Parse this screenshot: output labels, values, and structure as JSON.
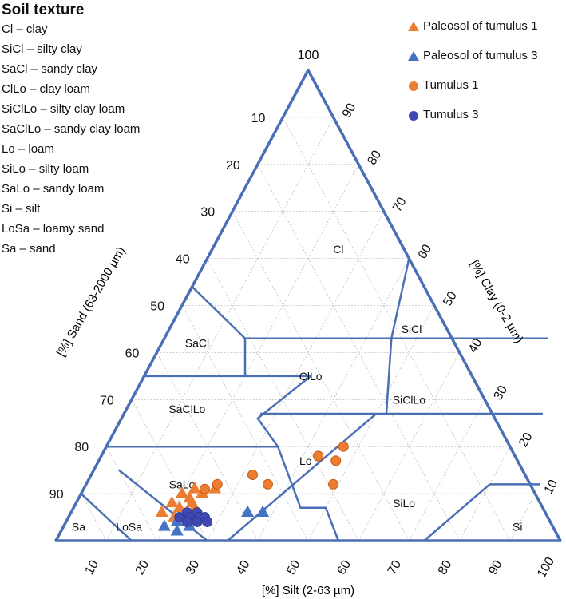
{
  "chart_data": {
    "type": "scatter",
    "subtype": "ternary-soil-texture",
    "title": "Soil texture",
    "axes": {
      "sand": {
        "label": "[%] Sand (63-2000 µm)",
        "ticks": [
          10,
          20,
          30,
          40,
          50,
          60,
          70,
          80,
          90
        ],
        "side": "left",
        "direction": "increasing-downward"
      },
      "clay": {
        "label": "[%] Clay (0-2 µm)",
        "ticks": [
          10,
          20,
          30,
          40,
          50,
          60,
          70,
          80,
          90,
          100
        ],
        "side": "right",
        "direction": "increasing-upward"
      },
      "silt": {
        "label": "[%] Silt (2-63 µm)",
        "ticks": [
          10,
          20,
          30,
          40,
          50,
          60,
          70,
          80,
          90,
          100
        ],
        "side": "bottom",
        "direction": "increasing-rightward"
      }
    },
    "apex_label": "100",
    "grid": true,
    "texture_classes": [
      {
        "code": "Cl",
        "name": "clay"
      },
      {
        "code": "SiCl",
        "name": "silty clay"
      },
      {
        "code": "SaCl",
        "name": "sandy clay"
      },
      {
        "code": "ClLo",
        "name": "clay loam"
      },
      {
        "code": "SiClLo",
        "name": "silty clay loam"
      },
      {
        "code": "SaClLo",
        "name": "sandy clay loam"
      },
      {
        "code": "Lo",
        "name": "loam"
      },
      {
        "code": "SiLo",
        "name": "silty loam"
      },
      {
        "code": "SaLo",
        "name": "sandy loam"
      },
      {
        "code": "Si",
        "name": "silt"
      },
      {
        "code": "LoSa",
        "name": "loamy sand"
      },
      {
        "code": "Sa",
        "name": "sand"
      }
    ],
    "region_labels": [
      {
        "text": "Cl",
        "silt": 25,
        "clay": 62
      },
      {
        "text": "SiCl",
        "silt": 48,
        "clay": 45
      },
      {
        "text": "SaCl",
        "silt": 7,
        "clay": 42
      },
      {
        "text": "ClLo",
        "silt": 33,
        "clay": 35
      },
      {
        "text": "SiClLo",
        "silt": 55,
        "clay": 30
      },
      {
        "text": "SaClLo",
        "silt": 12,
        "clay": 28
      },
      {
        "text": "Lo",
        "silt": 41,
        "clay": 17
      },
      {
        "text": "SiLo",
        "silt": 65,
        "clay": 8
      },
      {
        "text": "SaLo",
        "silt": 19,
        "clay": 12
      },
      {
        "text": "Si",
        "silt": 90,
        "clay": 3
      },
      {
        "text": "LoSa",
        "silt": 13,
        "clay": 3
      },
      {
        "text": "Sa",
        "silt": 3,
        "clay": 3
      }
    ],
    "series": [
      {
        "name": "Paleosol of tumulus 1",
        "marker": "triangle",
        "color": "#ED7D31",
        "points": [
          {
            "silt": 18,
            "clay": 6
          },
          {
            "silt": 19,
            "clay": 8
          },
          {
            "silt": 20,
            "clay": 10
          },
          {
            "silt": 21,
            "clay": 7
          },
          {
            "silt": 22,
            "clay": 9
          },
          {
            "silt": 23,
            "clay": 8
          },
          {
            "silt": 24,
            "clay": 10
          },
          {
            "silt": 26,
            "clay": 11
          },
          {
            "silt": 24,
            "clay": 7
          },
          {
            "silt": 22,
            "clay": 11
          },
          {
            "silt": 21,
            "clay": 5
          }
        ]
      },
      {
        "name": "Paleosol of tumulus 3",
        "marker": "triangle",
        "color": "#4472C4",
        "points": [
          {
            "silt": 20,
            "clay": 3
          },
          {
            "silt": 22,
            "clay": 4
          },
          {
            "silt": 23,
            "clay": 2
          },
          {
            "silt": 24,
            "clay": 5
          },
          {
            "silt": 25,
            "clay": 3
          },
          {
            "silt": 35,
            "clay": 6
          },
          {
            "silt": 38,
            "clay": 6
          }
        ]
      },
      {
        "name": "Tumulus 1",
        "marker": "circle",
        "color": "#ED7D31",
        "points": [
          {
            "silt": 26,
            "clay": 12
          },
          {
            "silt": 24,
            "clay": 11
          },
          {
            "silt": 32,
            "clay": 14
          },
          {
            "silt": 36,
            "clay": 12
          },
          {
            "silt": 43,
            "clay": 18
          },
          {
            "silt": 47,
            "clay": 20
          },
          {
            "silt": 49,
            "clay": 12
          },
          {
            "silt": 47,
            "clay": 17
          },
          {
            "silt": 43,
            "clay": 18
          }
        ]
      },
      {
        "name": "Tumulus 3",
        "marker": "circle",
        "color": "#3F48B5",
        "points": [
          {
            "silt": 22,
            "clay": 5
          },
          {
            "silt": 23,
            "clay": 6
          },
          {
            "silt": 24,
            "clay": 5
          },
          {
            "silt": 25,
            "clay": 6
          },
          {
            "silt": 26,
            "clay": 5
          },
          {
            "silt": 27,
            "clay": 5
          },
          {
            "silt": 24,
            "clay": 4
          },
          {
            "silt": 26,
            "clay": 4
          },
          {
            "silt": 28,
            "clay": 4
          }
        ]
      }
    ]
  },
  "side_legend": {
    "title": "Soil texture",
    "items": [
      "Cl – clay",
      "SiCl – silty clay",
      "SaCl – sandy clay",
      "ClLo – clay loam",
      "SiClLo – silty clay loam",
      "SaClLo – sandy clay loam",
      "Lo – loam",
      "SiLo – silty loam",
      "SaLo – sandy loam",
      "Si – silt",
      "LoSa – loamy sand",
      "Sa – sand"
    ]
  },
  "series_legend": {
    "items": [
      {
        "label": "Paleosol of tumulus 1",
        "marker": "triangle",
        "color": "#ED7D31"
      },
      {
        "label": "Paleosol of tumulus 3",
        "marker": "triangle",
        "color": "#4472C4"
      },
      {
        "label": "Tumulus 1",
        "marker": "circle",
        "color": "#ED7D31"
      },
      {
        "label": "Tumulus 3",
        "marker": "circle",
        "color": "#3F48B5"
      }
    ]
  },
  "colors": {
    "frame": "#4A6FB5",
    "grid": "#BFBFBF"
  }
}
